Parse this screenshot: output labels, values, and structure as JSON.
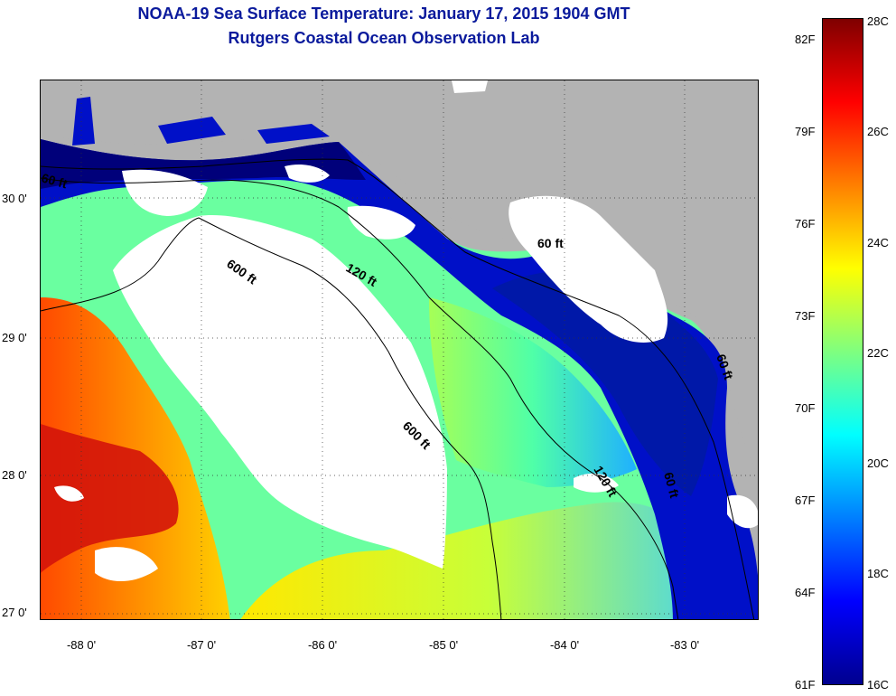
{
  "title": "NOAA-19 Sea Surface Temperature:  January 17, 2015 1904 GMT",
  "subtitle": "Rutgers Coastal Ocean Observation Lab",
  "map": {
    "lat_labels": [
      "30 0'",
      "29 0'",
      "28 0'",
      "27 0'"
    ],
    "lon_labels": [
      "-88 0'",
      "-87 0'",
      "-86 0'",
      "-85 0'",
      "-84 0'",
      "-83 0'"
    ],
    "contour_labels": [
      "600 ft",
      "120 ft",
      "600 ft",
      "120 ft",
      "60 ft",
      "60 ft",
      "60 ft",
      "60 ft"
    ],
    "land_color": "#b3b3b3",
    "cloud_color": "#ffffff"
  },
  "colorbar": {
    "fahrenheit_labels": [
      "82F",
      "79F",
      "76F",
      "73F",
      "70F",
      "67F",
      "64F",
      "61F"
    ],
    "celsius_labels": [
      "28C",
      "26C",
      "24C",
      "22C",
      "20C",
      "18C",
      "16C"
    ],
    "colormap": "jet",
    "min_c": 16,
    "max_c": 28
  }
}
